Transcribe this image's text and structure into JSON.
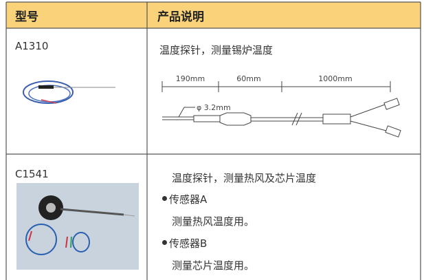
{
  "header": {
    "model": "型号",
    "description": "产品说明"
  },
  "rows": [
    {
      "model": "A1310",
      "description": "温度探针，测量锡炉温度",
      "diagram": {
        "dimensions": [
          "190mm",
          "60mm",
          "1000mm"
        ],
        "diameter": "φ 3.2mm"
      }
    },
    {
      "model": "C1541",
      "description": "温度探针，测量热风及芯片温度",
      "items": [
        {
          "label": "传感器A",
          "detail": "测量热风温度用。"
        },
        {
          "label": "传感器B",
          "detail": "测量芯片温度用。"
        }
      ]
    }
  ]
}
